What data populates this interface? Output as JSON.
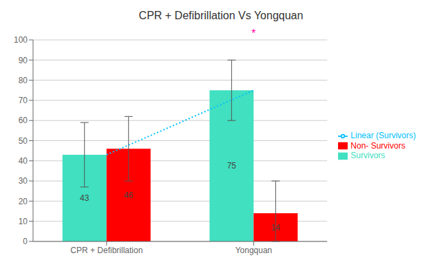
{
  "chart_data": {
    "type": "bar",
    "title": "CPR + Defibrillation Vs Yongquan",
    "categories": [
      "CPR + Defibrillation",
      "Yongquan"
    ],
    "series": [
      {
        "name": "Survivors",
        "type": "bar",
        "color": "#40E0C0",
        "values": [
          43,
          75
        ],
        "error_bottom": [
          27,
          60
        ],
        "error_top": [
          59,
          90
        ]
      },
      {
        "name": "Non- Survivors",
        "type": "bar",
        "color": "#FF0000",
        "values": [
          46,
          14
        ],
        "error_bottom": [
          30,
          0
        ],
        "error_top": [
          62,
          30
        ]
      },
      {
        "name": "Linear (Survivors)",
        "type": "line",
        "color": "#00BFFF",
        "line_style": "dotted",
        "values": [
          43,
          75
        ]
      }
    ],
    "ylim": [
      0,
      100
    ],
    "yticks": [
      0,
      10,
      20,
      30,
      40,
      50,
      60,
      70,
      80,
      90,
      100
    ],
    "grid": true,
    "legend": "right",
    "data_labels": true,
    "annotations": [
      {
        "text": "*",
        "x": "Yongquan",
        "y": 101.5,
        "color": "#FF00AA"
      }
    ]
  }
}
